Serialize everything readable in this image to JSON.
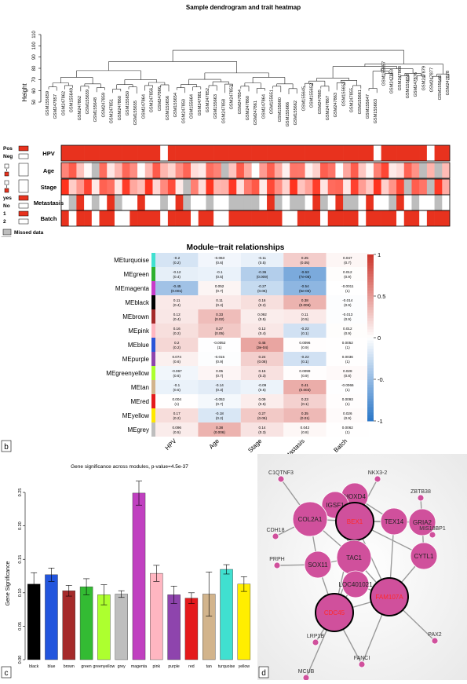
{
  "panel_a": {
    "label": "a",
    "title": "Sample dendrogram and trait heatmap",
    "y_axis_label": "Height",
    "y_ticks": [
      "50",
      "60",
      "70",
      "80",
      "90",
      "100",
      "110"
    ],
    "samples": [
      "GSM155659",
      "GSM247857",
      "GSM247862",
      "GSM155649",
      "GSM247862",
      "GSM155659",
      "GSM155648",
      "GSM247859",
      "GSM247851",
      "GSM247860",
      "GSM155650",
      "GSM155655",
      "GSM247864",
      "GSM247856",
      "GSM247866",
      "GSM155656",
      "GSM155654",
      "GSM247850",
      "GSM155664",
      "GSM247881",
      "GSM247852",
      "GSM155663",
      "GSM247858",
      "GSM247853",
      "GSM247854",
      "GSM247860",
      "GSM247861",
      "GSM247864",
      "GSM155651",
      "GSM155660",
      "GSM155666",
      "GSM155662",
      "GSM155645",
      "GSM155652",
      "GSM247865",
      "GSM247867",
      "GSM247863",
      "GSM155653",
      "GSM247855",
      "GSM155661",
      "GSM155647",
      "GSM155663",
      "GSM155657",
      "GSM247863",
      "GSM247868",
      "GSM155658",
      "GSM247876",
      "GSM247879",
      "GSM247877",
      "GSM155646",
      "GSM247878"
    ],
    "traits": [
      {
        "name": "HPV",
        "legend": [
          "Pos",
          "Neg"
        ]
      },
      {
        "name": "Age",
        "legend": []
      },
      {
        "name": "Stage",
        "legend": []
      },
      {
        "name": "Metastasis",
        "legend": [
          "yes",
          "No"
        ]
      },
      {
        "name": "Batch",
        "legend": [
          "1",
          "2"
        ]
      }
    ],
    "missed_label": "Missed data",
    "colors": {
      "dark": "#e8321e",
      "white": "#ffffff",
      "grey": "#bdbdbd"
    }
  },
  "panel_b": {
    "label": "b",
    "title": "Module−trait relationships",
    "columns": [
      "HPV",
      "Age",
      "Stage",
      "Metastasis",
      "Batch"
    ],
    "rows": [
      {
        "name": "MEturquoise",
        "color": "#40e0d0",
        "cells": [
          [
            "-0.2",
            "(0.2)"
          ],
          [
            "-0.063",
            "(0.6)"
          ],
          [
            "-0.11",
            "(0.5)"
          ],
          [
            "0.25",
            "(0.05)"
          ],
          [
            "0.047",
            "(0.7)"
          ]
        ],
        "v": [
          -0.2,
          -0.063,
          -0.11,
          0.25,
          0.047
        ]
      },
      {
        "name": "MEgreen",
        "color": "#2fb02f",
        "cells": [
          [
            "-0.12",
            "(0.4)"
          ],
          [
            "-0.1",
            "(0.5)"
          ],
          [
            "-0.36",
            "(0.009)"
          ],
          [
            "-0.63",
            "(7e-06)"
          ],
          [
            "0.012",
            "(0.9)"
          ]
        ],
        "v": [
          -0.12,
          -0.1,
          -0.36,
          -0.63,
          0.012
        ]
      },
      {
        "name": "MEmagenta",
        "color": "#c83cc8",
        "cells": [
          [
            "-0.45",
            "(0.001)"
          ],
          [
            "0.052",
            "(0.7)"
          ],
          [
            "-0.27",
            "(0.06)"
          ],
          [
            "-0.54",
            "(5e-05)"
          ],
          [
            "-0.0011",
            "(1)"
          ]
        ],
        "v": [
          -0.45,
          0.052,
          -0.27,
          -0.54,
          -0.0011
        ]
      },
      {
        "name": "MEblack",
        "color": "#000000",
        "cells": [
          [
            "0.11",
            "(0.4)"
          ],
          [
            "0.11",
            "(0.4)"
          ],
          [
            "0.16",
            "(0.2)"
          ],
          [
            "0.38",
            "(0.006)"
          ],
          [
            "-0.014",
            "(0.9)"
          ]
        ],
        "v": [
          0.11,
          0.11,
          0.16,
          0.38,
          -0.014
        ]
      },
      {
        "name": "MEbrown",
        "color": "#a52a2a",
        "cells": [
          [
            "0.12",
            "(0.4)"
          ],
          [
            "0.33",
            "(0.02)"
          ],
          [
            "0.092",
            "(0.5)"
          ],
          [
            "0.11",
            "(0.5)"
          ],
          [
            "-0.013",
            "(0.9)"
          ]
        ],
        "v": [
          0.12,
          0.33,
          0.092,
          0.11,
          -0.013
        ]
      },
      {
        "name": "MEpink",
        "color": "#ffb6c1",
        "cells": [
          [
            "0.16",
            "(0.2)"
          ],
          [
            "0.27",
            "(0.05)"
          ],
          [
            "0.12",
            "(0.4)"
          ],
          [
            "-0.22",
            "(0.1)"
          ],
          [
            "0.012",
            "(0.9)"
          ]
        ],
        "v": [
          0.16,
          0.27,
          0.12,
          -0.22,
          0.012
        ]
      },
      {
        "name": "MEblue",
        "color": "#2a55d8",
        "cells": [
          [
            "0.2",
            "(0.2)"
          ],
          [
            "-0.0052",
            "(1)"
          ],
          [
            "0.45",
            "(3e-04)"
          ],
          [
            "0.0096",
            "(0.9)"
          ],
          [
            "0.0052",
            "(1)"
          ]
        ],
        "v": [
          0.2,
          -0.0052,
          0.45,
          0.0096,
          0.0052
        ]
      },
      {
        "name": "MEpurple",
        "color": "#8e44ad",
        "cells": [
          [
            "0.074",
            "(0.6)"
          ],
          [
            "-0.015",
            "(0.9)"
          ],
          [
            "0.24",
            "(0.08)"
          ],
          [
            "-0.22",
            "(0.1)"
          ],
          [
            "0.0036",
            "(1)"
          ]
        ],
        "v": [
          0.074,
          -0.015,
          0.24,
          -0.22,
          0.0036
        ]
      },
      {
        "name": "MEgreenyellow",
        "color": "#adff2f",
        "cells": [
          [
            "-0.067",
            "(0.6)"
          ],
          [
            "0.05",
            "(0.7)"
          ],
          [
            "0.15",
            "(0.3)"
          ],
          [
            "0.0099",
            "(0.9)"
          ],
          [
            "0.028",
            "(0.8)"
          ]
        ],
        "v": [
          -0.067,
          0.05,
          0.15,
          0.0099,
          0.028
        ]
      },
      {
        "name": "MEtan",
        "color": "#d2b48c",
        "cells": [
          [
            "-0.1",
            "(0.5)"
          ],
          [
            "-0.14",
            "(0.3)"
          ],
          [
            "-0.09",
            "(0.5)"
          ],
          [
            "0.41",
            "(0.003)"
          ],
          [
            "-0.0066",
            "(1)"
          ]
        ],
        "v": [
          -0.1,
          -0.14,
          -0.09,
          0.41,
          -0.0066
        ]
      },
      {
        "name": "MEred",
        "color": "#e41a1c",
        "cells": [
          [
            "0.004",
            "(1)"
          ],
          [
            "-0.053",
            "(0.7)"
          ],
          [
            "0.09",
            "(0.5)"
          ],
          [
            "0.23",
            "(0.1)"
          ],
          [
            "0.0093",
            "(1)"
          ]
        ],
        "v": [
          0.004,
          -0.053,
          0.09,
          0.23,
          0.0093
        ]
      },
      {
        "name": "MEyellow",
        "color": "#ffe800",
        "cells": [
          [
            "0.17",
            "(0.2)"
          ],
          [
            "-0.18",
            "(0.2)"
          ],
          [
            "0.27",
            "(0.05)"
          ],
          [
            "0.35",
            "(0.01)"
          ],
          [
            "0.026",
            "(0.9)"
          ]
        ],
        "v": [
          0.17,
          -0.18,
          0.27,
          0.35,
          0.026
        ]
      },
      {
        "name": "MEgrey",
        "color": "#bebebe",
        "cells": [
          [
            "0.096",
            "(0.5)"
          ],
          [
            "0.38",
            "(0.006)"
          ],
          [
            "0.14",
            "(0.3)"
          ],
          [
            "0.042",
            "(0.8)"
          ],
          [
            "0.0062",
            "(1)"
          ]
        ],
        "v": [
          0.096,
          0.38,
          0.14,
          0.042,
          0.0062
        ]
      }
    ],
    "scale_labels": [
      "1",
      "0.5",
      "0",
      "-0.",
      "-1"
    ]
  },
  "chart_data": {
    "type": "bar",
    "title": "Gene significance across modules, p-value=4.5e-37",
    "ylabel": "Gene Significance",
    "xlabel": "",
    "ylim": [
      0,
      0.27
    ],
    "y_ticks": [
      "0.00",
      "0.05",
      "0.10",
      "0.15",
      "0.20",
      "0.25"
    ],
    "categories": [
      "black",
      "blue",
      "brown",
      "green",
      "greenyellow",
      "grey",
      "magenta",
      "pink",
      "purple",
      "red",
      "tan",
      "turquoise",
      "yellow"
    ],
    "values": [
      0.113,
      0.127,
      0.103,
      0.109,
      0.097,
      0.098,
      0.249,
      0.129,
      0.097,
      0.092,
      0.098,
      0.135,
      0.113
    ],
    "errors": [
      0.017,
      0.01,
      0.008,
      0.012,
      0.015,
      0.005,
      0.018,
      0.012,
      0.013,
      0.008,
      0.033,
      0.007,
      0.011
    ],
    "bar_colors": [
      "#000000",
      "#2255dd",
      "#a52a2a",
      "#33bb33",
      "#adff2f",
      "#bebebe",
      "#c040c0",
      "#ffb6c1",
      "#8e44ad",
      "#e41a1c",
      "#d2b48c",
      "#40e0d0",
      "#ffee00"
    ]
  },
  "panel_c": {
    "label": "c"
  },
  "panel_d": {
    "label": "d",
    "nodes": [
      {
        "id": "C1QTNF3",
        "label": "C1QTNF3",
        "kind": "small"
      },
      {
        "id": "NKX3-2",
        "label": "NKX3-2",
        "kind": "small"
      },
      {
        "id": "ZBTB38",
        "label": "ZBTB38",
        "kind": "small"
      },
      {
        "id": "HOXD4",
        "label": "HOXD4",
        "kind": "medium"
      },
      {
        "id": "IGSF1",
        "label": "IGSF1",
        "kind": "medium"
      },
      {
        "id": "COL2A1",
        "label": "COL2A1",
        "kind": "large"
      },
      {
        "id": "BEX1",
        "label": "BEX1",
        "kind": "hub"
      },
      {
        "id": "TEX14",
        "label": "TEX14",
        "kind": "medium"
      },
      {
        "id": "GRIA2",
        "label": "GRIA2",
        "kind": "medium"
      },
      {
        "id": "MS18BP1",
        "label": "MIS18BP1",
        "kind": "small"
      },
      {
        "id": "CDH18",
        "label": "CDH18",
        "kind": "small"
      },
      {
        "id": "PRPH",
        "label": "PRPH",
        "kind": "small"
      },
      {
        "id": "SOX11",
        "label": "SOX11",
        "kind": "medium"
      },
      {
        "id": "TAC1",
        "label": "TAC1",
        "kind": "large"
      },
      {
        "id": "LOC401021",
        "label": "LOC401021",
        "kind": "medium"
      },
      {
        "id": "CYTL1",
        "label": "CYTL1",
        "kind": "medium"
      },
      {
        "id": "FAM107A",
        "label": "FAM107A",
        "kind": "hub"
      },
      {
        "id": "CDC45",
        "label": "CDC45",
        "kind": "hub"
      },
      {
        "id": "LRP1B",
        "label": "LRP1B",
        "kind": "small"
      },
      {
        "id": "PAX2",
        "label": "PAX2",
        "kind": "small"
      },
      {
        "id": "FANCI",
        "label": "FANCI",
        "kind": "small"
      },
      {
        "id": "MCUB",
        "label": "MCUB",
        "kind": "small"
      }
    ]
  }
}
